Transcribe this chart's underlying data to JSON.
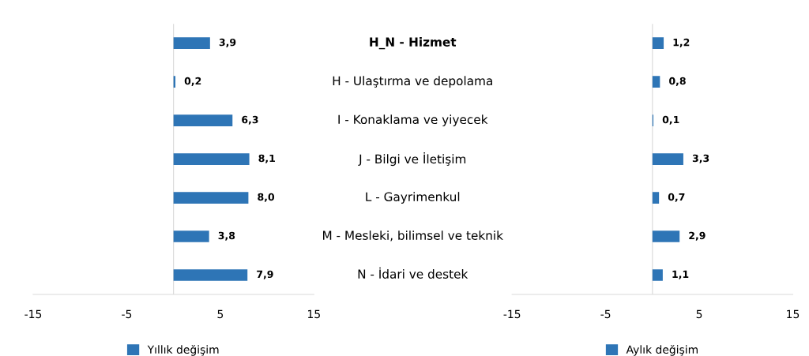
{
  "chart_data": [
    {
      "type": "bar",
      "orientation": "horizontal",
      "categories": [
        "H_N - Hizmet",
        "H - Ulaştırma ve depolama",
        "I - Konaklama ve yiyecek",
        "J - Bilgi ve İletişim",
        "L - Gayrimenkul",
        "M - Mesleki, bilimsel ve teknik",
        "N - İdari ve destek"
      ],
      "series": [
        {
          "name": "Yıllık değişim",
          "color": "#2e75b6",
          "values": [
            3.9,
            0.2,
            6.3,
            8.1,
            8.0,
            3.8,
            7.9
          ],
          "value_labels": [
            "3,9",
            "0,2",
            "6,3",
            "8,1",
            "8,0",
            "3,8",
            "7,9"
          ]
        }
      ],
      "xlim": [
        -15,
        15
      ],
      "xticks": [
        -15,
        -5,
        5,
        15
      ],
      "grid": false,
      "legend": "bottom"
    },
    {
      "type": "bar",
      "orientation": "horizontal",
      "categories": [
        null,
        null,
        null,
        null,
        null,
        null,
        null
      ],
      "series": [
        {
          "name": "Aylık değişim",
          "color": "#2e75b6",
          "values": [
            1.2,
            0.8,
            0.1,
            3.3,
            0.7,
            2.9,
            1.1
          ],
          "value_labels": [
            "1,2",
            "0,8",
            "0,1",
            "3,3",
            "0,7",
            "2,9",
            "1,1"
          ]
        }
      ],
      "xlim": [
        -15,
        15
      ],
      "xticks": [
        -15,
        -5,
        5,
        15
      ],
      "grid": false,
      "legend": "bottom"
    }
  ]
}
